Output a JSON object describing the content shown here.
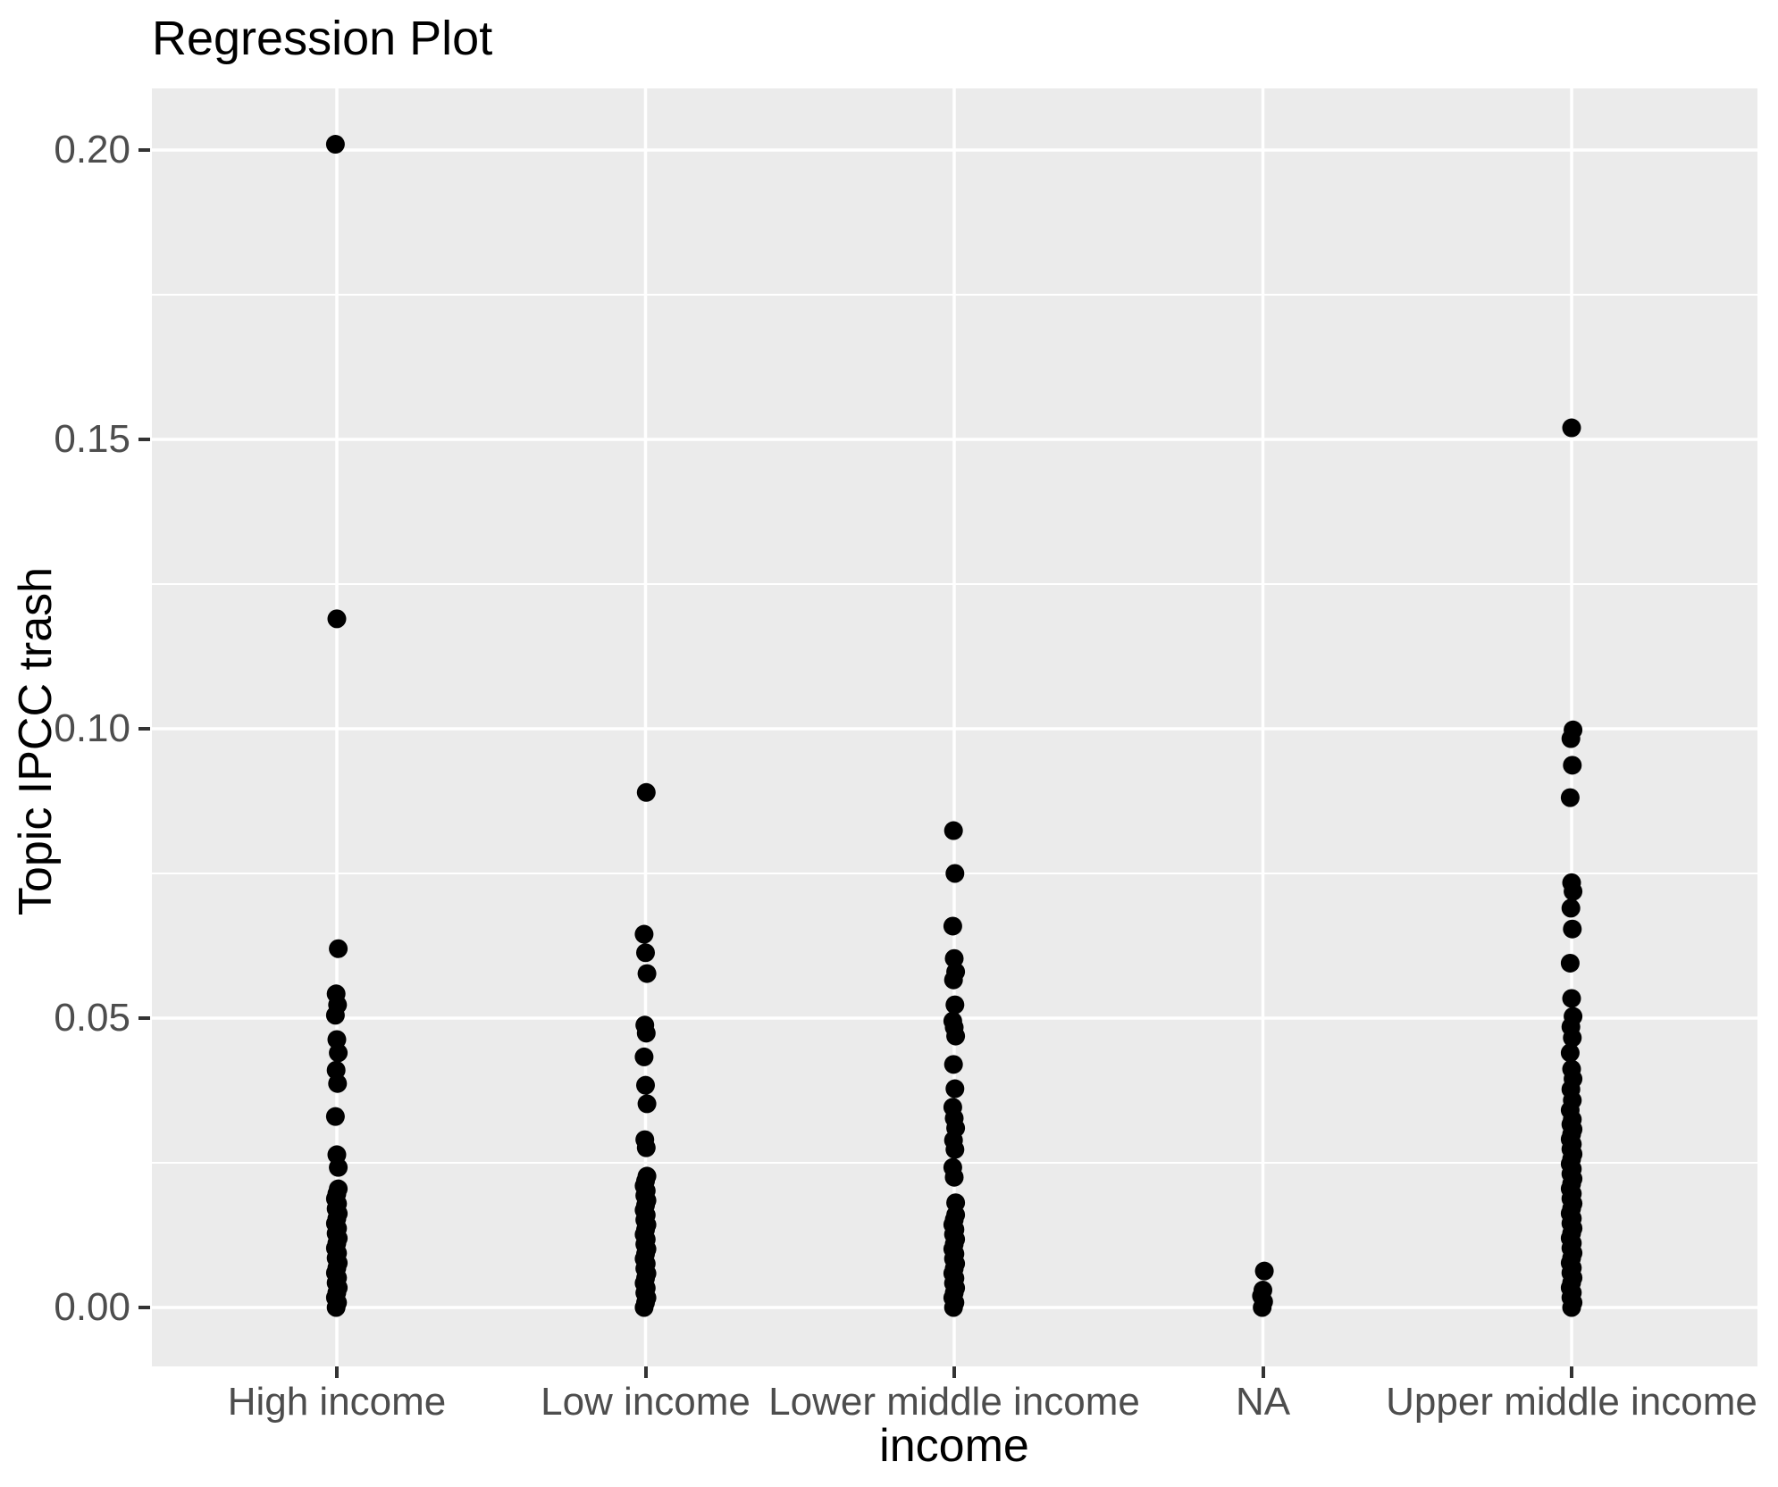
{
  "title": "Regression Plot",
  "colors": {
    "panel_background": "#EBEBEB",
    "gridline": "#FFFFFF",
    "point": "#000000",
    "tick_text": "#4D4D4D",
    "tick_mark": "#333333",
    "title_text": "#000000"
  },
  "chart_data": {
    "type": "scatter",
    "title": "Regression Plot",
    "xlabel": "income",
    "ylabel": "Topic IPCC trash",
    "ylim": [
      0,
      0.21
    ],
    "y_major_ticks": [
      0.2,
      0.15,
      0.1,
      0.05,
      0.0
    ],
    "y_tick_labels": [
      "0.20",
      "0.15",
      "0.10",
      "0.05",
      "0.00"
    ],
    "y_minor_gridlines": [
      0.175,
      0.125,
      0.075,
      0.025
    ],
    "grid": "on",
    "legend": "none",
    "categories": [
      "High income",
      "Low income",
      "Lower middle income",
      "NA",
      "Upper middle income"
    ],
    "series": [
      {
        "name": "High income",
        "values": [
          0.201,
          0.119,
          0.062,
          0.0542,
          0.0523,
          0.0505,
          0.0463,
          0.044,
          0.041,
          0.0387,
          0.033,
          0.0264,
          0.0242
        ],
        "dense_cluster": {
          "min": 0.0,
          "max": 0.0205,
          "count": 25
        }
      },
      {
        "name": "Low income",
        "values": [
          0.089,
          0.0645,
          0.0613,
          0.0577,
          0.0488,
          0.0474,
          0.0433,
          0.0384,
          0.0352,
          0.029,
          0.0276
        ],
        "dense_cluster": {
          "min": 0.0,
          "max": 0.0227,
          "count": 28
        }
      },
      {
        "name": "Lower middle income",
        "values": [
          0.0824,
          0.075,
          0.0659,
          0.0603,
          0.058,
          0.0566,
          0.0523,
          0.0495,
          0.0484,
          0.0469,
          0.042,
          0.0378,
          0.0346,
          0.0327,
          0.031,
          0.0289,
          0.0273,
          0.0242,
          0.0225,
          0.0181
        ],
        "dense_cluster": {
          "min": 0.0,
          "max": 0.016,
          "count": 20
        }
      },
      {
        "name": "NA",
        "values": [
          0.0063
        ],
        "dense_cluster": {
          "min": 0.0,
          "max": 0.003,
          "count": 4
        }
      },
      {
        "name": "Upper middle income",
        "values": [
          0.152,
          0.0998,
          0.0983,
          0.0937,
          0.0881,
          0.0734,
          0.0719,
          0.069,
          0.0654,
          0.0595,
          0.0534,
          0.0503,
          0.0485,
          0.0466,
          0.044,
          0.0412,
          0.0395,
          0.0377,
          0.0358,
          0.0341
        ],
        "dense_cluster": {
          "min": 0.0,
          "max": 0.0325,
          "count": 39
        }
      }
    ]
  }
}
